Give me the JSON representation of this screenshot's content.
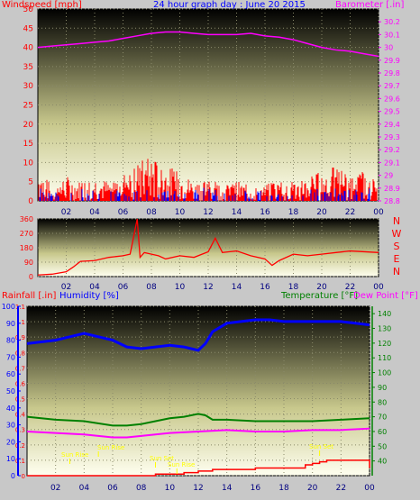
{
  "colors": {
    "wind": "#ff0000",
    "gust_fill": "#0000ff",
    "barometer": "#ff00ff",
    "humidity": "#0000ff",
    "temperature": "#008000",
    "dewpoint": "#ff00ff",
    "rainfall": "#ff0000",
    "wind_direction": "#ff0000",
    "day_tick": "#ffff00",
    "background": "#c8c8c8"
  },
  "chart_data": [
    {
      "type": "line",
      "title": "24 hour graph day : June 20 2015",
      "left_label": "Windspeed [mph]",
      "right_label": "Barometer [.in]",
      "x_ticks": [
        "02",
        "04",
        "06",
        "08",
        "10",
        "12",
        "14",
        "16",
        "18",
        "20",
        "22",
        "00"
      ],
      "x_range": [
        0,
        24
      ],
      "y_left_range": [
        0,
        50
      ],
      "y_left_ticks": [
        "0",
        "5",
        "10",
        "15",
        "20",
        "25",
        "30",
        "35",
        "40",
        "45",
        "50"
      ],
      "y_right_range": [
        28.8,
        30.3
      ],
      "y_right_ticks": [
        "28.8",
        "28.9",
        "29",
        "29.1",
        "29.2",
        "29.3",
        "29.4",
        "29.5",
        "29.6",
        "29.7",
        "29.8",
        "29.9",
        "30",
        "30.1",
        "30.2"
      ],
      "series": [
        {
          "name": "Barometer [.in]",
          "axis": "right",
          "x": [
            0,
            1,
            2,
            3,
            4,
            5,
            6,
            7,
            8,
            9,
            10,
            11,
            12,
            13,
            14,
            15,
            16,
            17,
            18,
            19,
            20,
            21,
            22,
            23,
            24
          ],
          "values": [
            30.0,
            30.01,
            30.02,
            30.03,
            30.04,
            30.05,
            30.07,
            30.09,
            30.11,
            30.12,
            30.12,
            30.11,
            30.1,
            30.1,
            30.1,
            30.11,
            30.09,
            30.08,
            30.06,
            30.03,
            30.0,
            29.98,
            29.97,
            29.95,
            29.93
          ]
        },
        {
          "name": "Windspeed [mph]",
          "axis": "left",
          "x": [
            0,
            1,
            2,
            3,
            4,
            5,
            6,
            7,
            8,
            9,
            10,
            11,
            12,
            13,
            14,
            15,
            16,
            17,
            18,
            19,
            20,
            21,
            22,
            23,
            24
          ],
          "values": [
            7,
            3,
            5,
            4,
            5,
            4,
            6,
            8,
            9,
            7,
            6,
            4,
            5,
            3,
            4,
            3,
            3,
            5,
            4,
            5,
            6,
            7,
            5,
            6,
            4
          ]
        }
      ]
    },
    {
      "type": "line",
      "y_range": [
        0,
        360
      ],
      "y_ticks": [
        "0",
        "90",
        "180",
        "270",
        "360"
      ],
      "compass_labels": [
        "N",
        "W",
        "S",
        "E",
        "N"
      ],
      "series": [
        {
          "name": "Wind direction",
          "x": [
            0,
            1,
            2,
            2.5,
            3,
            4,
            5,
            6,
            6.5,
            7,
            7.2,
            7.5,
            8,
            8.5,
            9,
            10,
            11,
            12,
            12.5,
            13,
            14,
            15,
            16,
            16.5,
            17,
            18,
            19,
            20,
            21,
            22,
            23,
            24
          ],
          "values": [
            10,
            15,
            30,
            60,
            95,
            100,
            120,
            130,
            140,
            360,
            120,
            150,
            140,
            130,
            110,
            130,
            120,
            155,
            240,
            150,
            160,
            130,
            110,
            70,
            100,
            140,
            130,
            140,
            150,
            160,
            155,
            150
          ]
        }
      ]
    },
    {
      "type": "line",
      "left_label": "Rainfall [.in]",
      "humidity_label": "Humidity [%]",
      "temperature_label": "Temperature [°F]",
      "dewpoint_label": "Dew Point [°F]",
      "y_rain_range": [
        0,
        1.1
      ],
      "y_rain_ticks": [
        "0",
        "0.1",
        "0.2",
        "0.3",
        "0.4",
        "0.5",
        "0.6",
        "0.7",
        "0.8",
        "0.9",
        "1",
        "1.1"
      ],
      "y_humidity_range": [
        0,
        100
      ],
      "y_humidity_ticks": [
        "0",
        "10",
        "20",
        "30",
        "40",
        "50",
        "60",
        "70",
        "80",
        "90",
        "100"
      ],
      "y_temp_range": [
        30,
        145
      ],
      "y_temp_ticks": [
        "40",
        "50",
        "60",
        "70",
        "80",
        "90",
        "100",
        "110",
        "120",
        "130",
        "140"
      ],
      "annotations": [
        "Sun Rise",
        "Sun Rise",
        "Sun Set",
        "Sun Set",
        "Sun Rise"
      ],
      "series": [
        {
          "name": "Humidity [%]",
          "x": [
            0,
            1,
            2,
            3,
            4,
            5,
            6,
            7,
            8,
            9,
            10,
            11,
            12,
            12.5,
            13,
            14,
            15,
            16,
            17,
            18,
            19,
            20,
            21,
            22,
            23,
            24
          ],
          "values": [
            78,
            79,
            80,
            82,
            84,
            82,
            80,
            76,
            75,
            76,
            77,
            76,
            74,
            78,
            85,
            90,
            91,
            92,
            92,
            91,
            91,
            91,
            91,
            91,
            90,
            89
          ],
          "axis": "humidity"
        },
        {
          "name": "Temperature [°F]",
          "x": [
            0,
            2,
            4,
            6,
            7,
            8,
            10,
            11,
            12,
            12.5,
            13,
            14,
            16,
            18,
            20,
            22,
            24
          ],
          "values": [
            70,
            68,
            67,
            64,
            64,
            65,
            69,
            70,
            72,
            71,
            68,
            68,
            67,
            67,
            67,
            68,
            69
          ],
          "axis": "temp"
        },
        {
          "name": "Dew Point [°F]",
          "x": [
            0,
            2,
            4,
            6,
            7,
            8,
            10,
            12,
            14,
            16,
            18,
            20,
            22,
            24
          ],
          "values": [
            60,
            59,
            58,
            56,
            56,
            57,
            59,
            60,
            61,
            60,
            60,
            61,
            61,
            62
          ],
          "axis": "temp"
        },
        {
          "name": "Rainfall [.in]",
          "x": [
            0,
            8,
            9,
            10,
            11,
            12,
            13,
            14,
            15,
            16,
            17,
            18,
            19,
            19.5,
            20,
            20.5,
            21,
            22,
            23,
            23.8,
            24
          ],
          "values": [
            0,
            0,
            0.01,
            0.01,
            0.02,
            0.03,
            0.04,
            0.04,
            0.04,
            0.05,
            0.05,
            0.05,
            0.05,
            0.07,
            0.08,
            0.09,
            0.1,
            0.1,
            0.1,
            0.1,
            0.05
          ],
          "axis": "rain"
        }
      ]
    }
  ]
}
